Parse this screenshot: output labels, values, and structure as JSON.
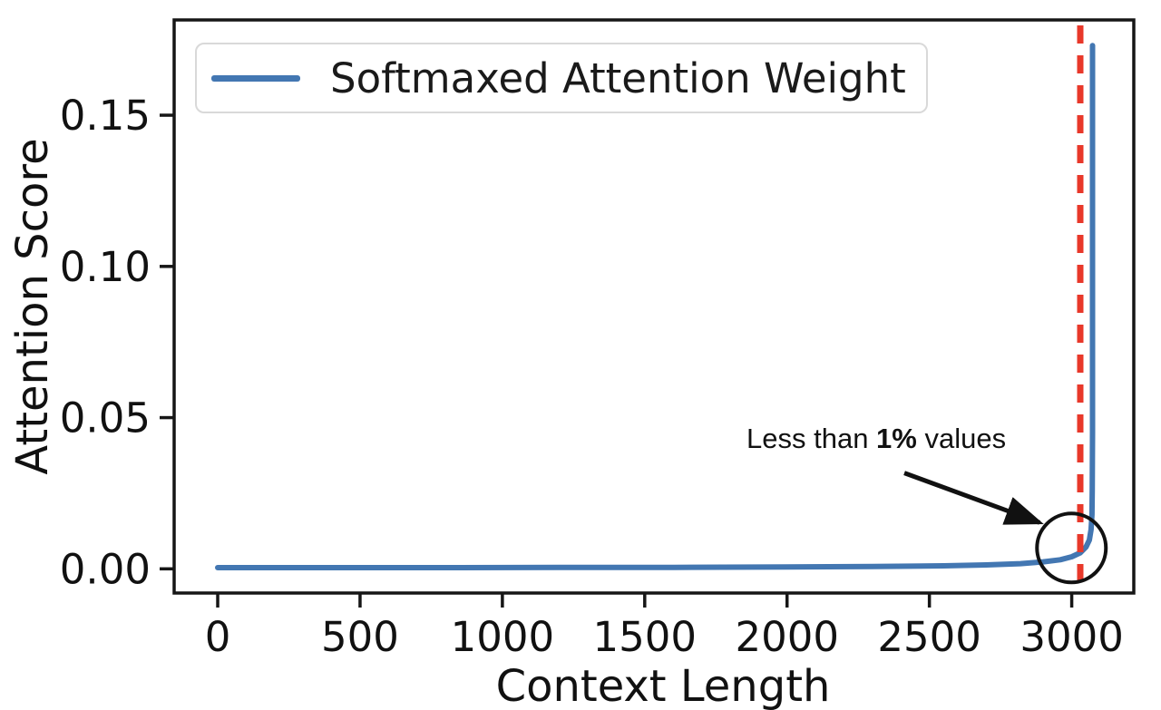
{
  "figure": {
    "xlabel": "Context Length",
    "ylabel": "Attention Score",
    "legend": {
      "label": "Softmaxed Attention Weight",
      "line_color": "#4377b2"
    },
    "annotation": {
      "prefix": "Less than ",
      "bold": "1%",
      "suffix": " values"
    }
  },
  "chart_data": {
    "type": "line",
    "title": "",
    "xlabel": "Context Length",
    "ylabel": "Attention Score",
    "xlim": [
      -153,
      3218
    ],
    "ylim": [
      -0.008,
      0.1815
    ],
    "xticks": [
      0,
      500,
      1000,
      1500,
      2000,
      2500,
      3000
    ],
    "xtick_labels": [
      "0",
      "500",
      "1000",
      "1500",
      "2000",
      "2500",
      "3000"
    ],
    "yticks": [
      0,
      0.05,
      0.1,
      0.15
    ],
    "ytick_labels": [
      "0.00",
      "0.05",
      "0.10",
      "0.15"
    ],
    "grid": false,
    "legend_position": "upper left",
    "axis_color": "#161616",
    "text_color": "#111111",
    "series": [
      {
        "name": "Softmaxed Attention Weight",
        "color": "#4377b2",
        "points": [
          [
            0,
            0.0004
          ],
          [
            400,
            0.0004
          ],
          [
            800,
            0.0004
          ],
          [
            1200,
            0.0005
          ],
          [
            1600,
            0.0005
          ],
          [
            2000,
            0.0006
          ],
          [
            2300,
            0.0008
          ],
          [
            2550,
            0.001
          ],
          [
            2700,
            0.0013
          ],
          [
            2820,
            0.0017
          ],
          [
            2900,
            0.0023
          ],
          [
            2960,
            0.003
          ],
          [
            3000,
            0.004
          ],
          [
            3030,
            0.0053
          ],
          [
            3050,
            0.0072
          ],
          [
            3062,
            0.0095
          ],
          [
            3068,
            0.013
          ],
          [
            3071,
            0.018
          ],
          [
            3072,
            0.026
          ],
          [
            3073,
            0.045
          ],
          [
            3073,
            0.09
          ],
          [
            3073,
            0.173
          ]
        ]
      }
    ],
    "vline": {
      "x": 3030,
      "color": "#e8382a",
      "style": "dashed"
    },
    "annotation": {
      "text": "Less than 1% values",
      "circle_center": [
        2999,
        0.0069
      ],
      "circle_radius_px": 38,
      "arrow_from": [
        2412,
        0.0317
      ],
      "arrow_to": [
        2887,
        0.0153
      ]
    },
    "peak": {
      "x": 3073,
      "y": 0.173
    }
  }
}
